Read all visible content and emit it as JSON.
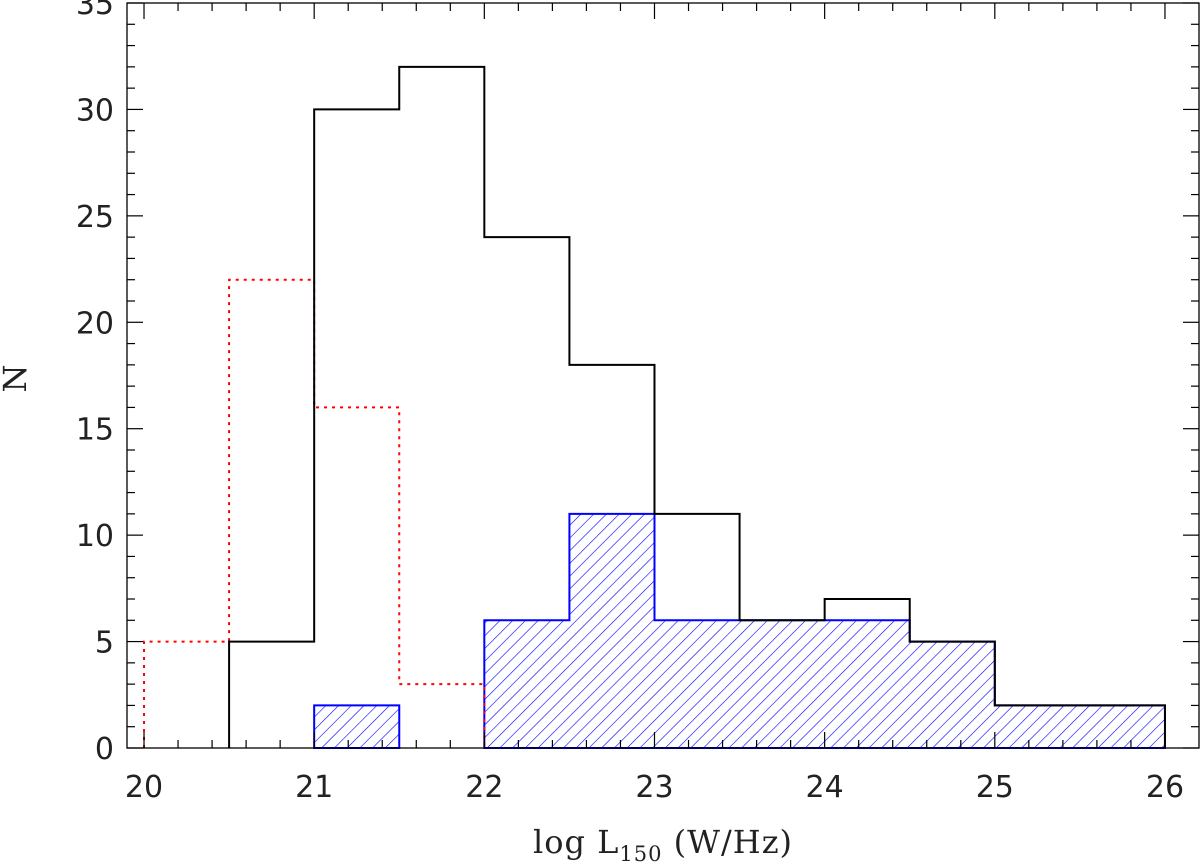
{
  "chart_data": {
    "type": "bar",
    "title": "",
    "xlabel": "log L",
    "xlabel_subscript": "150",
    "xlabel_unit": "(W/Hz)",
    "ylabel": "N",
    "xlim": [
      19.9,
      26.2
    ],
    "ylim": [
      0,
      35
    ],
    "x_ticks": [
      20,
      21,
      22,
      23,
      24,
      25,
      26
    ],
    "y_ticks": [
      0,
      5,
      10,
      15,
      20,
      25,
      30,
      35
    ],
    "grid": false,
    "bin_edges": [
      20.0,
      20.5,
      21.0,
      21.5,
      22.0,
      22.5,
      23.0,
      23.5,
      24.0,
      24.5,
      25.0,
      25.5,
      26.0
    ],
    "series": [
      {
        "style": "solid",
        "color": "#000000",
        "fill": "none",
        "values": [
          0,
          5,
          30,
          32,
          24,
          18,
          11,
          6,
          7,
          5,
          2,
          2
        ]
      },
      {
        "style": "dotted",
        "color": "#ff0000",
        "fill": "none",
        "values": [
          5,
          22,
          16,
          3,
          0,
          0,
          0,
          0,
          0,
          0,
          0,
          0
        ]
      },
      {
        "style": "hatched",
        "color": "#0000ff",
        "fill": "hatch",
        "values": [
          0,
          0,
          2,
          0,
          6,
          11,
          6,
          6,
          6,
          5,
          2,
          2
        ]
      }
    ]
  }
}
